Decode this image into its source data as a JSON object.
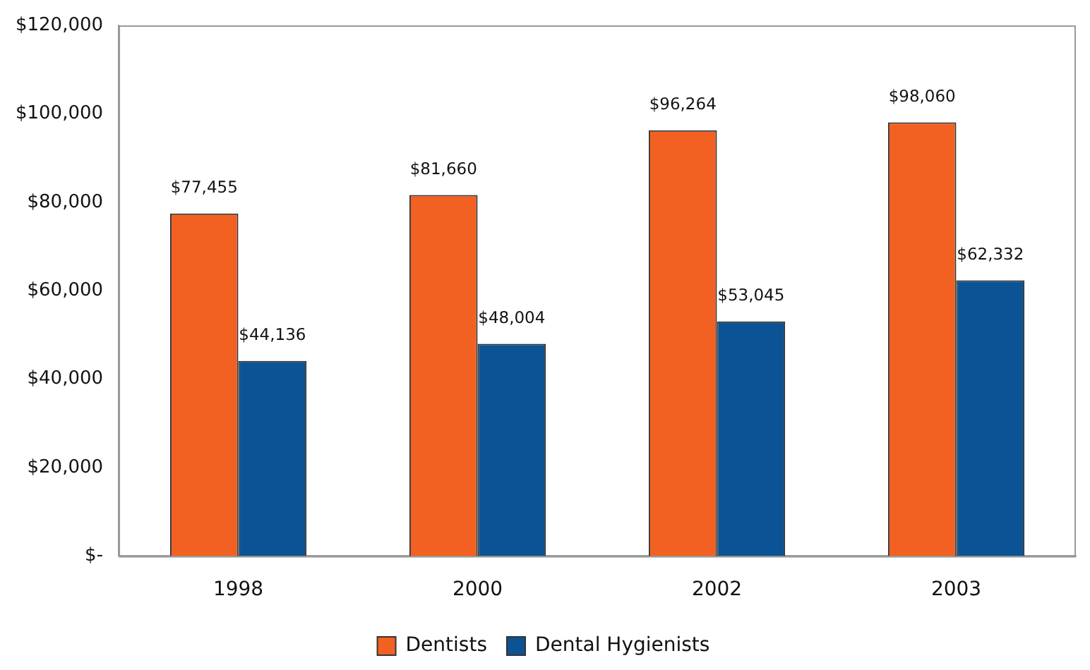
{
  "chart_data": {
    "type": "bar",
    "categories": [
      "1998",
      "2000",
      "2002",
      "2003"
    ],
    "series": [
      {
        "name": "Dentists",
        "color": "#f26122",
        "values": [
          77455,
          81660,
          96264,
          98060
        ],
        "value_labels": [
          "$77,455",
          "$81,660",
          "$96,264",
          "$98,060"
        ]
      },
      {
        "name": "Dental Hygienists",
        "color": "#0b5394",
        "values": [
          44136,
          48004,
          53045,
          62332
        ],
        "value_labels": [
          "$44,136",
          "$48,004",
          "$53,045",
          "$62,332"
        ]
      }
    ],
    "ylim": [
      0,
      120000
    ],
    "yticks": [
      {
        "value": 0,
        "label": "$-"
      },
      {
        "value": 20000,
        "label": "$20,000"
      },
      {
        "value": 40000,
        "label": "$40,000"
      },
      {
        "value": 60000,
        "label": "$60,000"
      },
      {
        "value": 80000,
        "label": "$80,000"
      },
      {
        "value": 100000,
        "label": "$100,000"
      },
      {
        "value": 120000,
        "label": "$120,000"
      }
    ],
    "grid": false,
    "legend": "bottom"
  }
}
